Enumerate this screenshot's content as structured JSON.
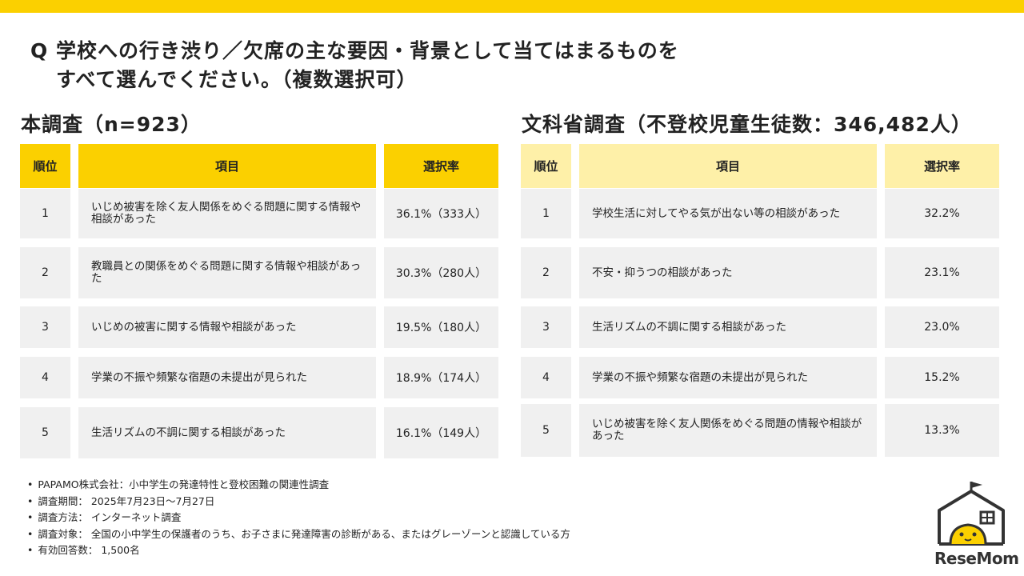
{
  "colors": {
    "accent": "#FBD000",
    "accent_light": "#FEF0A8",
    "row_bg": "#F0F0F0"
  },
  "question": {
    "line1": "Q 学校への行き渋り／欠席の主な要因・背景として当てはまるものを",
    "line2": "すべて選んでください。（複数選択可）"
  },
  "left": {
    "title": "本調査（n=923）",
    "headers": {
      "rank": "順位",
      "item": "項目",
      "rate": "選択率"
    },
    "rows": [
      {
        "rank": "1",
        "item": "いじめ被害を除く友人関係をめぐる問題に関する情報や相談があった",
        "rate": "36.1%（333人）"
      },
      {
        "rank": "2",
        "item": "教職員との関係をめぐる問題に関する情報や相談があった",
        "rate": "30.3%（280人）"
      },
      {
        "rank": "3",
        "item": "いじめの被害に関する情報や相談があった",
        "rate": "19.5%（180人）"
      },
      {
        "rank": "4",
        "item": "学業の不振や頻繁な宿題の未提出が見られた",
        "rate": "18.9%（174人）"
      },
      {
        "rank": "5",
        "item": "生活リズムの不調に関する相談があった",
        "rate": "16.1%（149人）"
      }
    ]
  },
  "right": {
    "title": "文科省調査（不登校児童生徒数：346,482人）",
    "headers": {
      "rank": "順位",
      "item": "項目",
      "rate": "選択率"
    },
    "rows": [
      {
        "rank": "1",
        "item": "学校生活に対してやる気が出ない等の相談があった",
        "rate": "32.2%"
      },
      {
        "rank": "2",
        "item": "不安・抑うつの相談があった",
        "rate": "23.1%"
      },
      {
        "rank": "3",
        "item": "生活リズムの不調に関する相談があった",
        "rate": "23.0%"
      },
      {
        "rank": "4",
        "item": "学業の不振や頻繁な宿題の未提出が見られた",
        "rate": "15.2%"
      },
      {
        "rank": "5",
        "item": "いじめ被害を除く友人関係をめぐる問題の情報や相談があった",
        "rate": "13.3%"
      }
    ]
  },
  "notes": [
    "PAPAMO株式会社：小中学生の発達特性と登校困難の関連性調査",
    "調査期間： 2025年7月23日～7月27日",
    "調査方法： インターネット調査",
    "調査対象： 全国の小中学生の保護者のうち、お子さまに発達障害の診断がある、またはグレーゾーンと認識している方",
    "有効回答数： 1,500名"
  ],
  "logo": {
    "text": "ReseMom",
    "icon": "house-face-logo"
  }
}
